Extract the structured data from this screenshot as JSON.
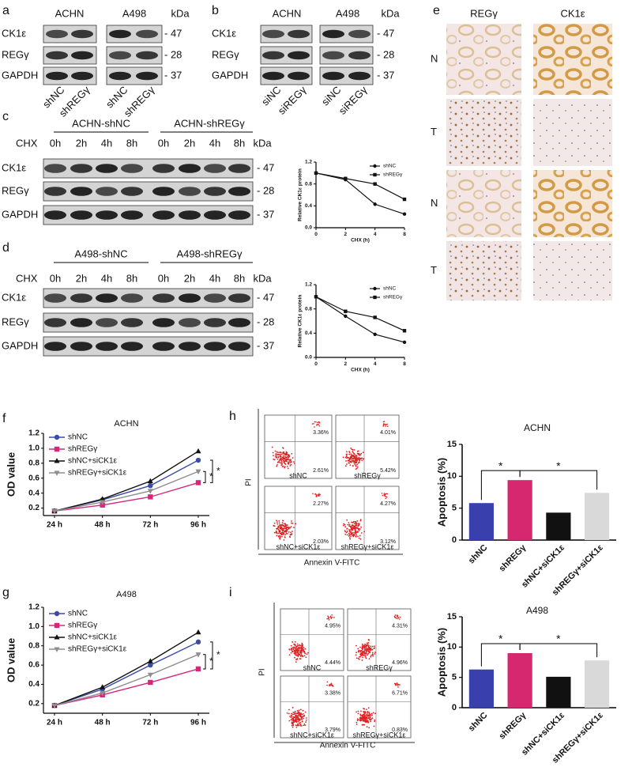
{
  "panel_labels": [
    "a",
    "b",
    "c",
    "d",
    "e",
    "f",
    "g",
    "h",
    "i"
  ],
  "blots": [
    {
      "groups": [
        "ACHN",
        "A498"
      ],
      "unit": "kDa",
      "rows": [
        "CK1ε",
        "REGγ",
        "GAPDH"
      ],
      "markers": [
        "- 47",
        "- 28",
        "- 37"
      ],
      "lanes": [
        "shNC",
        "shREGγ",
        "shNC",
        "shREGγ"
      ]
    },
    {
      "groups": [
        "ACHN",
        "A498"
      ],
      "unit": "kDa",
      "rows": [
        "CK1ε",
        "REGγ",
        "GAPDH"
      ],
      "markers": [
        "- 47",
        "- 28",
        "- 37"
      ],
      "lanes": [
        "siNC",
        "siREGγ",
        "siNC",
        "siREGγ"
      ]
    },
    {
      "groups": [
        "ACHN-shNC",
        "ACHN-shREGγ"
      ],
      "treatment": "CHX",
      "unit": "kDa",
      "rows": [
        "CK1ε",
        "REGγ",
        "GAPDH"
      ],
      "markers": [
        "- 47",
        "- 28",
        "- 37"
      ],
      "lanes": [
        "0h",
        "2h",
        "4h",
        "8h",
        "0h",
        "2h",
        "4h",
        "8h"
      ]
    },
    {
      "groups": [
        "A498-shNC",
        "A498-shREGγ"
      ],
      "treatment": "CHX",
      "unit": "kDa",
      "rows": [
        "CK1ε",
        "REGγ",
        "GAPDH"
      ],
      "markers": [
        "- 47",
        "- 28",
        "- 37"
      ],
      "lanes": [
        "0h",
        "2h",
        "4h",
        "8h",
        "0h",
        "2h",
        "4h",
        "8h"
      ]
    }
  ],
  "ihc": {
    "columns": [
      "REGγ",
      "CK1ε"
    ],
    "rows": [
      "N",
      "T",
      "N",
      "T"
    ]
  },
  "flow": [
    {
      "ylabel": "PI",
      "xlabel": "Annexin V-FITC",
      "plots": [
        {
          "name": "shNC",
          "upper": "3.36%",
          "lower": "2.61%"
        },
        {
          "name": "shREGγ",
          "upper": "4.01%",
          "lower": "5.42%"
        },
        {
          "name": "shNC+siCK1ε",
          "upper": "2.27%",
          "lower": "2.03%"
        },
        {
          "name": "shREGγ+siCK1ε",
          "upper": "4.27%",
          "lower": "3.12%"
        }
      ]
    },
    {
      "ylabel": "PI",
      "xlabel": "Annexin V-FITC",
      "plots": [
        {
          "name": "shNC",
          "upper": "4.95%",
          "lower": "4.44%"
        },
        {
          "name": "shREGγ",
          "upper": "4.31%",
          "lower": "4.96%"
        },
        {
          "name": "shNC+siCK1ε",
          "upper": "3.38%",
          "lower": "3.79%"
        },
        {
          "name": "shREGγ+siCK1ε",
          "upper": "6.71%",
          "lower": "0.83%"
        }
      ]
    }
  ],
  "chart_data": [
    {
      "type": "line",
      "xlabel": "CHX (h)",
      "ylabel": "Relative CK1ε protein",
      "categories": [
        "0",
        "2",
        "4",
        "8"
      ],
      "ylim": [
        0,
        1.2
      ],
      "yticks": [
        {
          "value": 0,
          "label": "0.0"
        },
        0.4,
        0.8,
        1.2
      ],
      "series": [
        {
          "name": "shNC",
          "color": "#111111",
          "marker": "circle",
          "values": [
            1.0,
            0.88,
            0.43,
            0.25
          ]
        },
        {
          "name": "shREGγ",
          "color": "#111111",
          "marker": "square",
          "values": [
            1.0,
            0.9,
            0.8,
            0.52
          ]
        }
      ]
    },
    {
      "type": "line",
      "xlabel": "CHX (h)",
      "ylabel": "Relative CK1ε protein",
      "categories": [
        "0",
        "2",
        "4",
        "8"
      ],
      "ylim": [
        0,
        1.2
      ],
      "yticks": [
        {
          "value": 0,
          "label": "0.0"
        },
        0.4,
        0.8,
        1.2
      ],
      "series": [
        {
          "name": "shNC",
          "color": "#111111",
          "marker": "circle",
          "values": [
            1.0,
            0.68,
            0.38,
            0.25
          ]
        },
        {
          "name": "shREGγ",
          "color": "#111111",
          "marker": "square",
          "values": [
            1.0,
            0.76,
            0.66,
            0.44
          ]
        }
      ]
    },
    {
      "type": "line",
      "title": "ACHN",
      "ylabel": "OD value",
      "categories": [
        "24 h",
        "48 h",
        "72 h",
        "96 h"
      ],
      "ylim": [
        0.1,
        1.2
      ],
      "yticks": [
        0.2,
        0.4,
        0.6,
        0.8,
        {
          "value": 1,
          "label": "1.0"
        },
        1.2
      ],
      "annotations": [
        "*",
        "*"
      ],
      "series": [
        {
          "name": "shNC",
          "color": "#3b4ba8",
          "marker": "circle",
          "values": [
            0.16,
            0.31,
            0.5,
            0.84
          ]
        },
        {
          "name": "shREGγ",
          "color": "#d6287a",
          "marker": "square",
          "values": [
            0.16,
            0.24,
            0.35,
            0.54
          ]
        },
        {
          "name": "shNC+siCK1ε",
          "color": "#111111",
          "marker": "triangle",
          "values": [
            0.16,
            0.32,
            0.56,
            0.96
          ]
        },
        {
          "name": "shREGγ+siCK1ε",
          "color": "#8e8e8e",
          "marker": "triangle-down",
          "values": [
            0.16,
            0.28,
            0.43,
            0.69
          ]
        }
      ]
    },
    {
      "type": "line",
      "title": "A498",
      "ylabel": "OD value",
      "categories": [
        "24 h",
        "48 h",
        "72 h",
        "96 h"
      ],
      "ylim": [
        0.1,
        1.2
      ],
      "yticks": [
        0.2,
        0.4,
        0.6,
        0.8,
        {
          "value": 1,
          "label": "1.0"
        },
        1.2
      ],
      "annotations": [
        "*",
        "*"
      ],
      "series": [
        {
          "name": "shNC",
          "color": "#3b4ba8",
          "marker": "circle",
          "values": [
            0.18,
            0.35,
            0.6,
            0.84
          ]
        },
        {
          "name": "shREGγ",
          "color": "#d6287a",
          "marker": "square",
          "values": [
            0.18,
            0.29,
            0.42,
            0.56
          ]
        },
        {
          "name": "shNC+siCK1ε",
          "color": "#111111",
          "marker": "triangle",
          "values": [
            0.18,
            0.37,
            0.64,
            0.94
          ]
        },
        {
          "name": "shREGγ+siCK1ε",
          "color": "#8e8e8e",
          "marker": "triangle-down",
          "values": [
            0.18,
            0.31,
            0.5,
            0.71
          ]
        }
      ]
    },
    {
      "type": "bar",
      "title": "ACHN",
      "ylabel": "Apoptosis (%)",
      "categories": [
        "shNC",
        "shREGγ",
        "shNC+siCK1ε",
        "shREGγ+siCK1ε"
      ],
      "values": [
        5.8,
        9.4,
        4.3,
        7.4
      ],
      "colors": [
        "#3a3fae",
        "#d6286f",
        "#111111",
        "#d9d9d9"
      ],
      "ylim": [
        0,
        15
      ],
      "yticks": [
        0,
        5,
        10,
        15
      ],
      "annotations": [
        "*",
        "*"
      ]
    },
    {
      "type": "bar",
      "title": "A498",
      "ylabel": "Apoptosis (%)",
      "categories": [
        "shNC",
        "shREGγ",
        "shNC+siCK1ε",
        "shREGγ+siCK1ε"
      ],
      "values": [
        6.3,
        9.0,
        5.1,
        7.8
      ],
      "colors": [
        "#3a3fae",
        "#d6286f",
        "#111111",
        "#d9d9d9"
      ],
      "ylim": [
        0,
        15
      ],
      "yticks": [
        0,
        5,
        10,
        15
      ],
      "annotations": [
        "*",
        "*"
      ]
    }
  ]
}
